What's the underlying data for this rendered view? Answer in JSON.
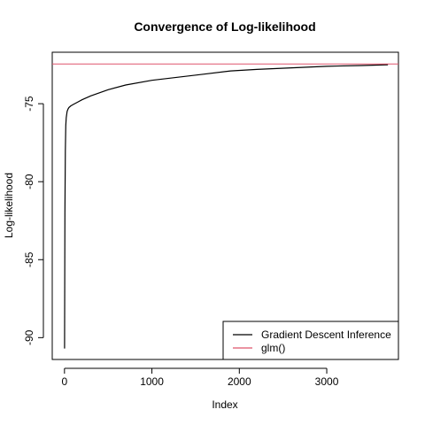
{
  "chart_data": {
    "type": "line",
    "title": "Convergence of Log-likelihood",
    "xlabel": "Index",
    "ylabel": "Log-likelihood",
    "xlim": [
      -140,
      3820
    ],
    "ylim": [
      -91.4,
      -71.7
    ],
    "x_ticks": [
      0,
      1000,
      2000,
      3000
    ],
    "x_tick_labels": [
      "0",
      "1000",
      "2000",
      "3000"
    ],
    "y_ticks": [
      -90,
      -85,
      -80,
      -75
    ],
    "y_tick_labels": [
      "-90",
      "-85",
      "-80",
      "-75"
    ],
    "grid": false,
    "legend_position": "bottom-right",
    "series": [
      {
        "name": "Gradient Descent Inference",
        "color": "#000000",
        "x": [
          1,
          5,
          10,
          15,
          20,
          30,
          40,
          50,
          70,
          100,
          150,
          200,
          300,
          400,
          500,
          700,
          1000,
          1300,
          1600,
          1900,
          2200,
          2600,
          3000,
          3400,
          3700
        ],
        "y": [
          -90.7,
          -82.0,
          -78.0,
          -76.4,
          -75.9,
          -75.5,
          -75.35,
          -75.25,
          -75.15,
          -75.05,
          -74.9,
          -74.75,
          -74.5,
          -74.3,
          -74.1,
          -73.8,
          -73.5,
          -73.3,
          -73.1,
          -72.9,
          -72.8,
          -72.7,
          -72.6,
          -72.55,
          -72.5
        ]
      },
      {
        "name": "glm()",
        "color": "#df536b",
        "type": "hline",
        "y": -72.45
      }
    ]
  }
}
